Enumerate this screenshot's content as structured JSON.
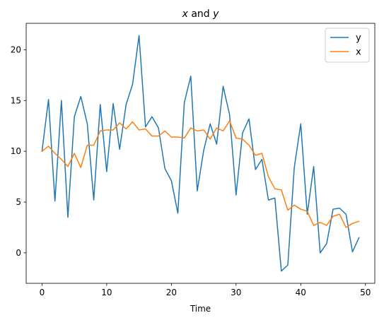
{
  "chart_data": {
    "type": "line",
    "title_prefix": "x",
    "title_mid": " and ",
    "title_suffix": "y",
    "xlabel": "Time",
    "ylabel": "",
    "xlim": [
      -2.45,
      51.45
    ],
    "ylim": [
      -3.0,
      22.6
    ],
    "xticks": [
      0,
      10,
      20,
      30,
      40,
      50
    ],
    "yticks": [
      0,
      5,
      10,
      15,
      20
    ],
    "legend_position": "top-right",
    "grid": false,
    "x": [
      0,
      1,
      2,
      3,
      4,
      5,
      6,
      7,
      8,
      9,
      10,
      11,
      12,
      13,
      14,
      15,
      16,
      17,
      18,
      19,
      20,
      21,
      22,
      23,
      24,
      25,
      26,
      27,
      28,
      29,
      30,
      31,
      32,
      33,
      34,
      35,
      36,
      37,
      38,
      39,
      40,
      41,
      42,
      43,
      44,
      45,
      46,
      47,
      48,
      49
    ],
    "series": [
      {
        "name": "y",
        "color": "#1f77b4",
        "values": [
          10.0,
          15.1,
          5.1,
          15.0,
          3.5,
          13.4,
          15.4,
          12.7,
          5.2,
          14.6,
          8.0,
          14.7,
          10.2,
          14.6,
          16.6,
          21.4,
          12.4,
          13.4,
          12.3,
          8.3,
          7.1,
          3.9,
          14.8,
          17.4,
          6.1,
          10.1,
          12.7,
          10.7,
          16.4,
          13.6,
          5.7,
          11.8,
          13.2,
          8.2,
          9.2,
          5.2,
          5.4,
          -1.8,
          -1.2,
          8.4,
          12.7,
          3.8,
          8.5,
          0.0,
          0.9,
          4.3,
          4.4,
          3.8,
          0.1,
          1.5
        ]
      },
      {
        "name": "x",
        "color": "#ff7f0e",
        "values": [
          10.0,
          10.5,
          9.8,
          9.2,
          8.5,
          9.8,
          8.4,
          10.6,
          10.6,
          12.0,
          12.1,
          12.1,
          12.8,
          12.2,
          12.9,
          12.1,
          12.2,
          11.5,
          11.5,
          12.0,
          11.4,
          11.4,
          11.3,
          12.3,
          12.0,
          12.1,
          11.2,
          12.3,
          12.0,
          13.0,
          11.3,
          11.2,
          10.6,
          9.6,
          9.8,
          7.5,
          6.3,
          6.2,
          4.2,
          4.7,
          4.3,
          4.1,
          2.7,
          3.0,
          2.7,
          3.6,
          3.8,
          2.5,
          2.9,
          3.1
        ]
      }
    ]
  }
}
